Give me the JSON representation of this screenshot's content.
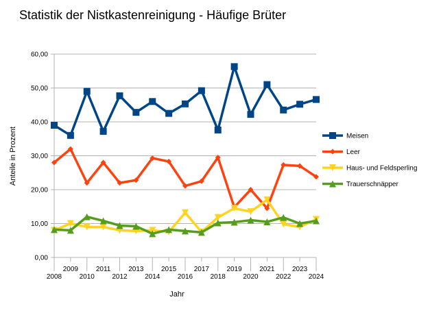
{
  "chart_data": {
    "type": "line",
    "title": "Statistik der Nistkastenreinigung - Häufige Brüter",
    "xlabel": "Jahr",
    "ylabel": "Anteile in Prozent",
    "x": [
      "2008",
      "2009",
      "2010",
      "2011",
      "2012",
      "2013",
      "2014",
      "2015",
      "2016",
      "2017",
      "2018",
      "2019",
      "2020",
      "2021",
      "2022",
      "2023",
      "2024"
    ],
    "ylim": [
      0,
      60
    ],
    "yticks": [
      "0,00",
      "10,00",
      "20,00",
      "30,00",
      "40,00",
      "50,00",
      "60,00"
    ],
    "grid": true,
    "legend_position": "right",
    "series": [
      {
        "name": "Meisen",
        "color": "#004586",
        "marker": "square",
        "values": [
          39.0,
          36.0,
          49.0,
          37.2,
          47.7,
          42.8,
          46.0,
          42.5,
          45.3,
          49.2,
          37.6,
          56.3,
          42.2,
          51.0,
          43.5,
          45.2,
          46.6
        ]
      },
      {
        "name": "Leer",
        "color": "#ff420e",
        "marker": "diamond",
        "values": [
          28.0,
          32.0,
          22.0,
          28.0,
          22.0,
          22.8,
          29.3,
          28.3,
          21.1,
          22.5,
          29.5,
          14.8,
          20.0,
          14.5,
          27.3,
          27.0,
          23.8
        ]
      },
      {
        "name": "Haus- und Feldsperling",
        "color": "#ffd320",
        "marker": "triangle-down",
        "values": [
          8.0,
          10.0,
          9.0,
          9.0,
          8.0,
          7.8,
          8.0,
          7.5,
          13.2,
          7.5,
          11.8,
          14.5,
          13.5,
          17.0,
          9.8,
          9.0,
          11.2
        ]
      },
      {
        "name": "Trauerschnäpper",
        "color": "#579d1c",
        "marker": "triangle-up",
        "values": [
          8.2,
          8.0,
          12.0,
          10.8,
          9.4,
          9.2,
          7.0,
          8.2,
          7.8,
          7.4,
          10.2,
          10.4,
          11.0,
          10.5,
          11.8,
          10.0,
          10.8
        ]
      }
    ]
  }
}
